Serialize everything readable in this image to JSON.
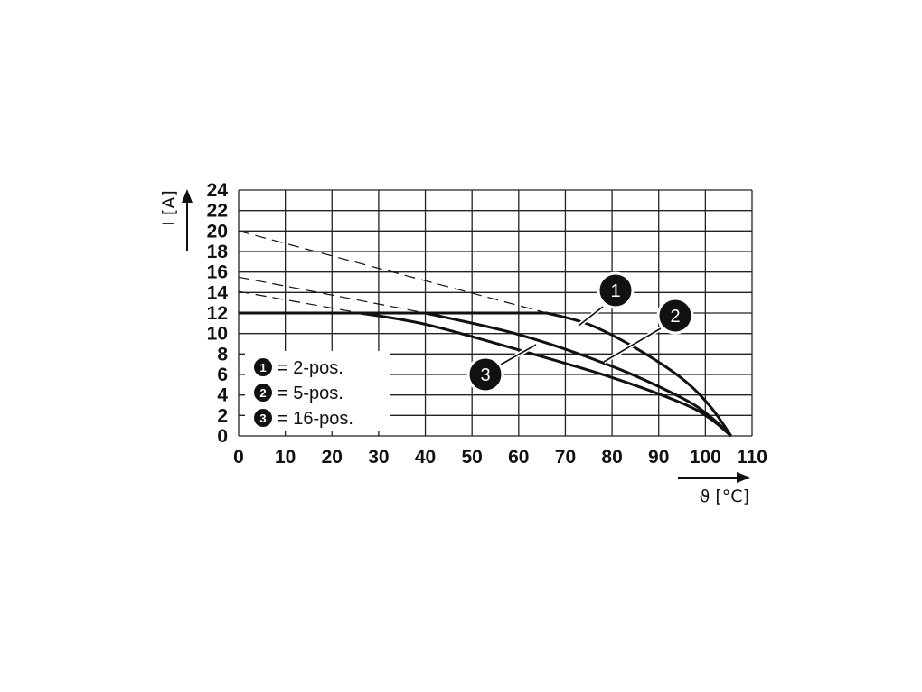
{
  "chart_data": {
    "type": "line",
    "xlabel": "ϑ [°C]",
    "ylabel": "I [A]",
    "xlim": [
      0,
      110
    ],
    "ylim": [
      0,
      24
    ],
    "x_ticks": [
      0,
      10,
      20,
      30,
      40,
      50,
      60,
      70,
      80,
      90,
      100,
      110
    ],
    "y_ticks": [
      0,
      2,
      4,
      6,
      8,
      10,
      12,
      14,
      16,
      18,
      20,
      22,
      24
    ],
    "grid": true,
    "legend_position": "bottom-left",
    "series": [
      {
        "name": "1",
        "legend_label": "= 2-pos.",
        "solid": [
          [
            0,
            12
          ],
          [
            66,
            12
          ],
          [
            75,
            10.9
          ],
          [
            85,
            8.6
          ],
          [
            95,
            5.6
          ],
          [
            101,
            2.9
          ],
          [
            105.5,
            0
          ]
        ],
        "extrapolated": [
          [
            0,
            20
          ],
          [
            66,
            12
          ]
        ]
      },
      {
        "name": "2",
        "legend_label": "= 5-pos.",
        "solid": [
          [
            0,
            12
          ],
          [
            40,
            12
          ],
          [
            60,
            9.9
          ],
          [
            80,
            6.8
          ],
          [
            95,
            3.7
          ],
          [
            101,
            1.9
          ],
          [
            105.5,
            0
          ]
        ],
        "extrapolated": [
          [
            0,
            15.5
          ],
          [
            40,
            12
          ]
        ]
      },
      {
        "name": "3",
        "legend_label": "= 16-pos.",
        "solid": [
          [
            0,
            12
          ],
          [
            26,
            12
          ],
          [
            40,
            10.9
          ],
          [
            60,
            8.4
          ],
          [
            80,
            5.7
          ],
          [
            95,
            3.2
          ],
          [
            101,
            1.7
          ],
          [
            105.5,
            0
          ]
        ],
        "extrapolated": [
          [
            0,
            14.1
          ],
          [
            26,
            12
          ]
        ]
      }
    ],
    "callouts": [
      "1",
      "2",
      "3"
    ]
  }
}
